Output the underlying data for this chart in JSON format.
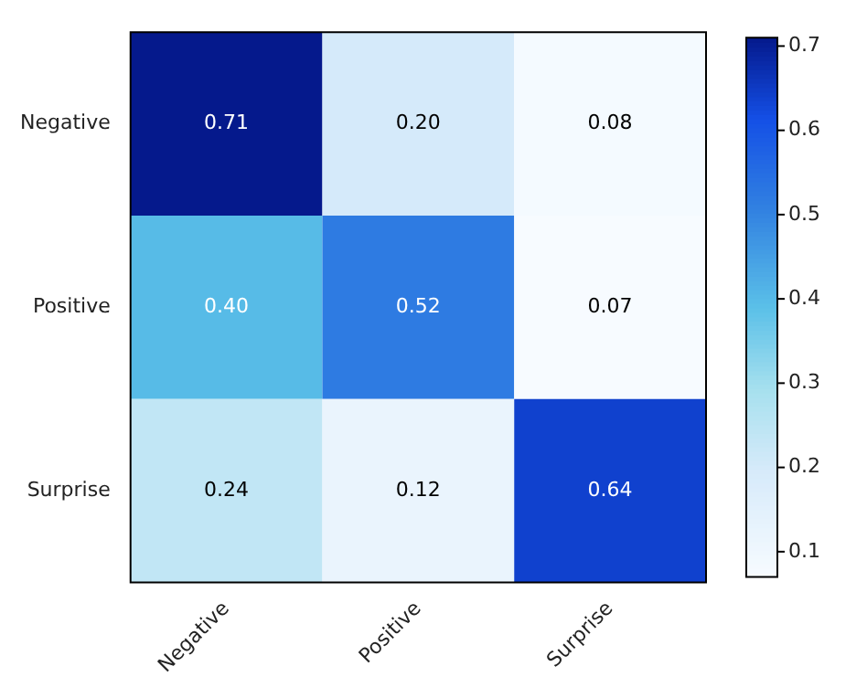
{
  "chart_data": {
    "type": "heatmap",
    "categories": [
      "Negative",
      "Positive",
      "Surprise"
    ],
    "y_categories": [
      "Negative",
      "Positive",
      "Surprise"
    ],
    "cells": [
      [
        0.71,
        0.2,
        0.08
      ],
      [
        0.4,
        0.52,
        0.07
      ],
      [
        0.24,
        0.12,
        0.64
      ]
    ],
    "cell_labels": [
      [
        "0.71",
        "0.20",
        "0.08"
      ],
      [
        "0.40",
        "0.52",
        "0.07"
      ],
      [
        "0.24",
        "0.12",
        "0.64"
      ]
    ],
    "clim": [
      0.07,
      0.71
    ],
    "cticks": [
      0.1,
      0.2,
      0.3,
      0.4,
      0.5,
      0.6,
      0.7
    ],
    "data_labels": true
  }
}
